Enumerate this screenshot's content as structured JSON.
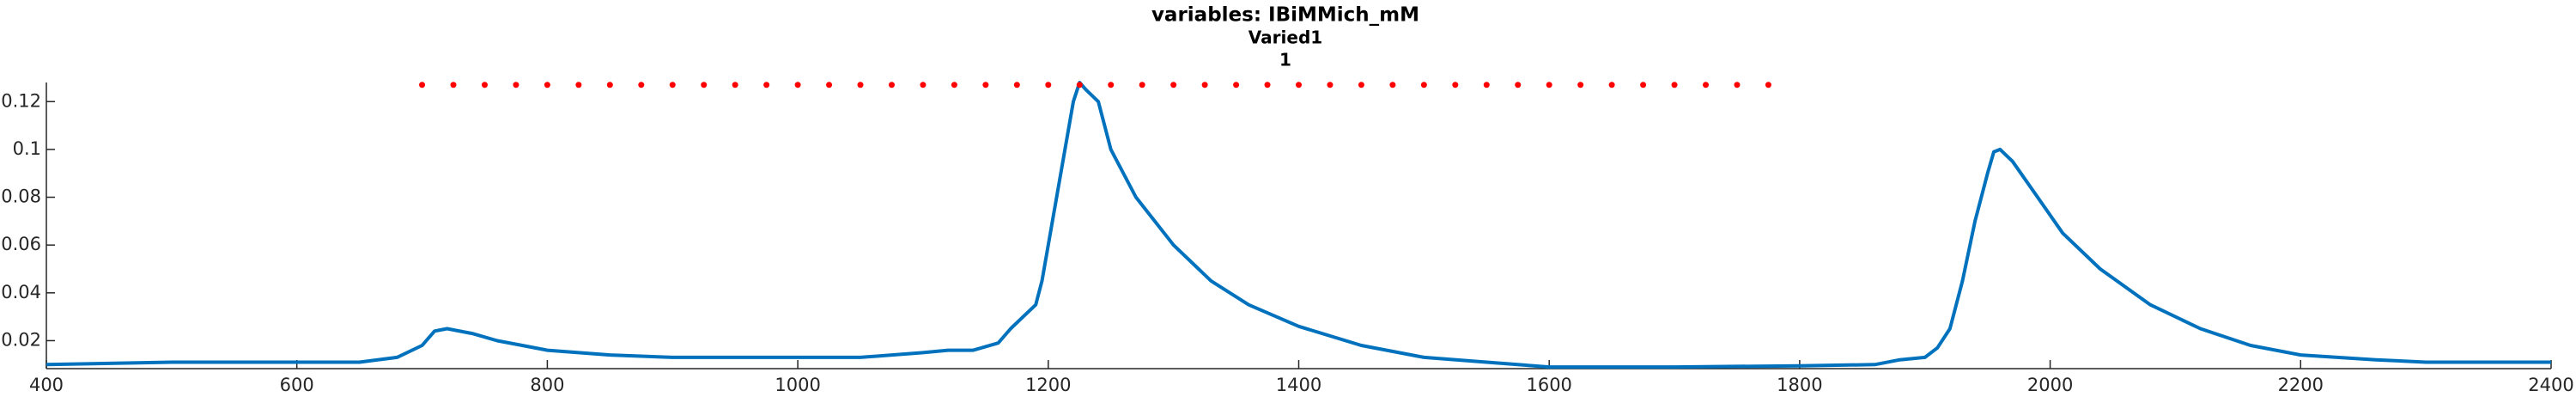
{
  "chart_data": {
    "type": "line",
    "title": "variables: IBiMMich_mM",
    "subtitle": "Varied1",
    "annotation": "1",
    "series": [
      {
        "color": "#0072bd",
        "style": "solid",
        "x": [
          400,
          500,
          600,
          650,
          680,
          700,
          710,
          720,
          740,
          760,
          780,
          800,
          850,
          900,
          950,
          1000,
          1050,
          1100,
          1120,
          1140,
          1160,
          1170,
          1180,
          1190,
          1195,
          1200,
          1210,
          1215,
          1220,
          1225,
          1230,
          1240,
          1250,
          1270,
          1300,
          1330,
          1360,
          1400,
          1450,
          1500,
          1550,
          1600,
          1700,
          1800,
          1860,
          1880,
          1900,
          1910,
          1920,
          1930,
          1940,
          1950,
          1955,
          1960,
          1970,
          1990,
          2010,
          2040,
          2080,
          2120,
          2160,
          2200,
          2260,
          2300,
          2400
        ],
        "values": [
          0.01,
          0.011,
          0.011,
          0.011,
          0.013,
          0.018,
          0.024,
          0.025,
          0.023,
          0.02,
          0.018,
          0.016,
          0.014,
          0.013,
          0.013,
          0.013,
          0.013,
          0.015,
          0.016,
          0.016,
          0.019,
          0.025,
          0.03,
          0.035,
          0.045,
          0.06,
          0.09,
          0.105,
          0.12,
          0.128,
          0.125,
          0.12,
          0.1,
          0.08,
          0.06,
          0.045,
          0.035,
          0.026,
          0.018,
          0.013,
          0.011,
          0.009,
          0.009,
          0.0095,
          0.01,
          0.012,
          0.013,
          0.017,
          0.025,
          0.045,
          0.07,
          0.09,
          0.099,
          0.1,
          0.095,
          0.08,
          0.065,
          0.05,
          0.035,
          0.025,
          0.018,
          0.014,
          0.012,
          0.011,
          0.011
        ]
      },
      {
        "color": "#ff0000",
        "style": "dotted",
        "x": [
          700,
          725,
          750,
          775,
          800,
          825,
          850,
          875,
          900,
          925,
          950,
          975,
          1000,
          1025,
          1050,
          1075,
          1100,
          1125,
          1150,
          1175,
          1200,
          1225,
          1250,
          1275,
          1300,
          1325,
          1350,
          1375,
          1400,
          1425,
          1450,
          1475,
          1500,
          1525,
          1550,
          1575,
          1600,
          1625,
          1650,
          1675,
          1700,
          1725,
          1750,
          1775
        ],
        "values": [
          0.127,
          0.127,
          0.127,
          0.127,
          0.127,
          0.127,
          0.127,
          0.127,
          0.127,
          0.127,
          0.127,
          0.127,
          0.127,
          0.127,
          0.127,
          0.127,
          0.127,
          0.127,
          0.127,
          0.127,
          0.127,
          0.127,
          0.127,
          0.127,
          0.127,
          0.127,
          0.127,
          0.127,
          0.127,
          0.127,
          0.127,
          0.127,
          0.127,
          0.127,
          0.127,
          0.127,
          0.127,
          0.127,
          0.127,
          0.127,
          0.127,
          0.127,
          0.127,
          0.127
        ]
      }
    ],
    "xlim": [
      400,
      2400
    ],
    "xticks": [
      400,
      600,
      800,
      1000,
      1200,
      1400,
      1600,
      1800,
      2000,
      2200,
      2400
    ],
    "ylim": [
      0.0083,
      0.128
    ],
    "yticks": [
      0.02,
      0.04,
      0.06,
      0.08,
      0.1,
      0.12
    ],
    "grid": false
  }
}
